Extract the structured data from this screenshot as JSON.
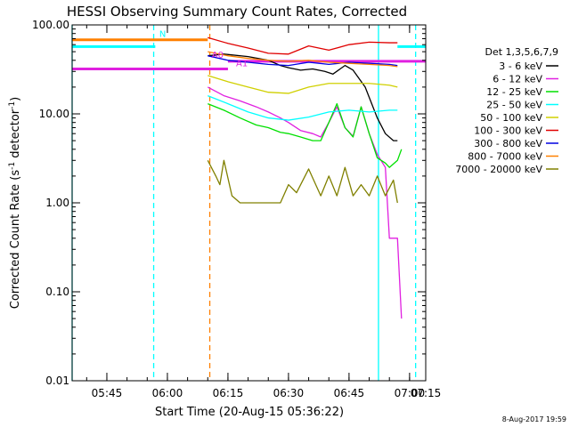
{
  "chart_data": {
    "type": "line",
    "title": "HESSI Observing Summary Count Rates, Corrected",
    "xlabel": "Start Time (20-Aug-15 05:36:22)",
    "ylabel_prefix": "Corrected Count Rate (s",
    "ylabel_mid": " detector",
    "ylabel_suffix": ")",
    "ylabel_sup": "-1",
    "yscale": "log",
    "ylim": [
      0.01,
      100
    ],
    "xlim_min": [
      36.4,
      124
    ],
    "ytick_values": [
      0.01,
      0.1,
      1,
      10,
      100
    ],
    "ytick_labels": [
      "0.01",
      "0.10",
      "1.00",
      "10.00",
      "100.00"
    ],
    "xtick_values": [
      45,
      60,
      75,
      90,
      105,
      120
    ],
    "xtick_labels": [
      "05:45",
      "06:00",
      "06:15",
      "06:30",
      "06:45",
      "07:00",
      "07:15"
    ],
    "xtick_minutes": [
      45,
      60,
      75,
      90,
      105,
      120,
      135
    ],
    "legend_header": "Det 1,3,5,6,7,9",
    "legend_placement": "right",
    "series": [
      {
        "name": "3 - 6 keV",
        "color": "#000000",
        "x": [
          70,
          74,
          80,
          85,
          88,
          90,
          93,
          96,
          99,
          101,
          104,
          106,
          109,
          112,
          114,
          116,
          117
        ],
        "y": [
          45,
          47,
          44,
          40,
          35,
          33,
          31,
          32,
          30,
          28,
          35,
          31,
          20,
          9,
          6,
          5,
          5
        ]
      },
      {
        "name": "6 - 12 keV",
        "color": "#e020e0",
        "x": [
          70,
          74,
          78,
          82,
          85,
          88,
          90,
          93,
          96,
          98,
          100,
          102,
          104,
          106,
          108,
          110,
          112,
          114,
          115,
          117,
          118
        ],
        "y": [
          20,
          16,
          14,
          12,
          10.5,
          9,
          8,
          6.5,
          6,
          5.5,
          8,
          12,
          7,
          5.6,
          12,
          6,
          3.5,
          2.5,
          0.4,
          0.4,
          0.05
        ]
      },
      {
        "name": "12 - 25 keV",
        "color": "#00e000",
        "x": [
          70,
          74,
          78,
          82,
          85,
          88,
          90,
          93,
          96,
          98,
          100,
          102,
          104,
          106,
          108,
          110,
          112,
          114,
          115,
          117,
          118
        ],
        "y": [
          13,
          11,
          9,
          7.5,
          7,
          6.2,
          6,
          5.5,
          5,
          5,
          8,
          13,
          7,
          5.5,
          12,
          6,
          3.2,
          2.8,
          2.5,
          3,
          4
        ]
      },
      {
        "name": "25 - 50 keV",
        "color": "#00ffff",
        "x": [
          70,
          75,
          80,
          85,
          90,
          95,
          100,
          105,
          110,
          115,
          117
        ],
        "y": [
          16,
          13,
          10.5,
          9,
          8.5,
          9.2,
          10.5,
          11,
          10.5,
          11,
          11
        ]
      },
      {
        "name": "50 - 100 keV",
        "color": "#d0d000",
        "x": [
          70,
          75,
          80,
          85,
          90,
          95,
          100,
          105,
          110,
          115,
          117
        ],
        "y": [
          27,
          23,
          20,
          17.5,
          17,
          20,
          22,
          22,
          22,
          21,
          20
        ]
      },
      {
        "name": "100 - 300 keV",
        "color": "#e00000",
        "x": [
          70,
          75,
          80,
          85,
          90,
          95,
          100,
          105,
          110,
          115,
          117
        ],
        "y": [
          72,
          62,
          55,
          48,
          47,
          58,
          52,
          60,
          64,
          63,
          63
        ]
      },
      {
        "name": "300 - 800 keV",
        "color": "#0000e0",
        "x": [
          70,
          75,
          80,
          85,
          90,
          95,
          100,
          105,
          110,
          115,
          117
        ],
        "y": [
          45,
          40,
          38,
          36,
          35,
          38,
          36,
          38,
          37,
          36,
          35
        ]
      },
      {
        "name": "800 - 7000 keV",
        "color": "#ff8000",
        "x": [
          70,
          75,
          80,
          85,
          90,
          95,
          100,
          105,
          110,
          115,
          117
        ],
        "y": [
          50,
          45,
          42,
          40,
          39,
          40,
          38,
          37,
          36,
          35,
          34
        ]
      },
      {
        "name": "7000 - 20000 keV",
        "color": "#808000",
        "x": [
          70,
          72,
          73,
          74,
          76,
          78,
          80,
          82,
          85,
          88,
          90,
          92,
          95,
          98,
          100,
          102,
          104,
          106,
          108,
          110,
          112,
          114,
          116,
          117
        ],
        "y": [
          3,
          2,
          1.6,
          3,
          1.2,
          1,
          1,
          1,
          1,
          1,
          1.6,
          1.3,
          2.4,
          1.2,
          2,
          1.2,
          2.5,
          1.2,
          1.6,
          1.2,
          2,
          1.2,
          1.8,
          1
        ]
      }
    ],
    "reference_lines": [
      {
        "color": "#ff8000",
        "x": [
          36.4,
          70
        ],
        "y": [
          68,
          68
        ]
      },
      {
        "color": "#00ffff",
        "x": [
          36.4,
          57
        ],
        "y": [
          57,
          57
        ]
      },
      {
        "color": "#e020e0",
        "x": [
          36.4,
          75
        ],
        "y": [
          32,
          32
        ]
      },
      {
        "color": "#e020e0",
        "x": [
          75,
          124
        ],
        "y": [
          39,
          39
        ]
      },
      {
        "color": "#00ffff",
        "x": [
          117,
          124
        ],
        "y": [
          57,
          57
        ]
      }
    ],
    "vertical_markers": [
      {
        "x": 36.4,
        "color": "#00ffff",
        "style": "solid"
      },
      {
        "x": 56.6,
        "color": "#00ffff",
        "style": "dashed"
      },
      {
        "x": 70.5,
        "color": "#ff8000",
        "style": "dashed"
      },
      {
        "x": 112.3,
        "color": "#00ffff",
        "style": "solid"
      },
      {
        "x": 121.5,
        "color": "#00ffff",
        "style": "dashed"
      }
    ],
    "annotations": [
      {
        "text": "N",
        "color": "#00ffff",
        "x": 58,
        "y": 68
      },
      {
        "text": "A0",
        "color": "#e020e0",
        "x": 71,
        "y": 40
      },
      {
        "text": "A1",
        "color": "#e020e0",
        "x": 77,
        "y": 32
      }
    ]
  },
  "footer": {
    "timestamp": "8-Aug-2017 19:59"
  }
}
